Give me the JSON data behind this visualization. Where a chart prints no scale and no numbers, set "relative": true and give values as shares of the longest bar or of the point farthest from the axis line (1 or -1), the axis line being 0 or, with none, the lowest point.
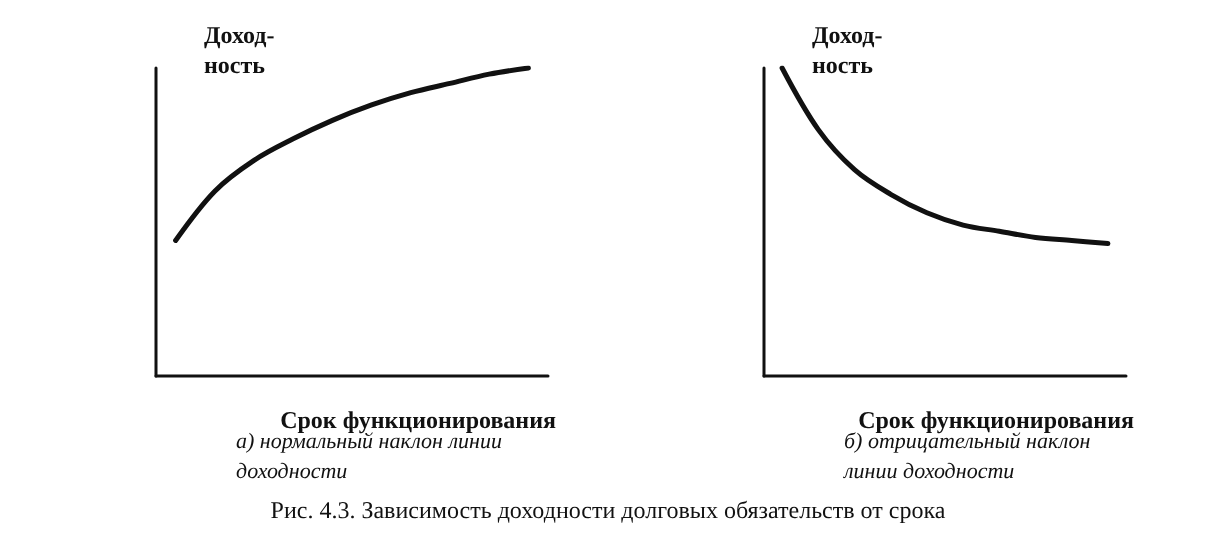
{
  "chart_data": [
    {
      "type": "line",
      "ylabel": "Доход-\nность",
      "xlabel": "Срок функционирования",
      "subtitle": "а) нормальный наклон линии доходности",
      "categories": [
        null,
        null,
        null,
        null,
        null,
        null,
        null,
        null,
        null,
        null
      ],
      "relative": true,
      "marker": "none",
      "series": [
        {
          "color": "#111111",
          "values": [
            0.44,
            0.6,
            0.7,
            0.77,
            0.83,
            0.88,
            0.92,
            0.95,
            0.98,
            1.0
          ]
        }
      ],
      "annotations": [
        "Рис. 4.3. Зависимость доходности долговых обязательств от срока"
      ]
    },
    {
      "type": "line",
      "ylabel": "Доход-\nность",
      "xlabel": "Срок функционирования",
      "subtitle": "б) отрицательный наклон линии доходности",
      "categories": [
        null,
        null,
        null,
        null,
        null,
        null,
        null,
        null,
        null,
        null
      ],
      "relative": true,
      "marker": "none",
      "series": [
        {
          "color": "#111111",
          "values": [
            1.0,
            0.8,
            0.67,
            0.59,
            0.53,
            0.49,
            0.47,
            0.45,
            0.44,
            0.43
          ]
        }
      ]
    }
  ]
}
